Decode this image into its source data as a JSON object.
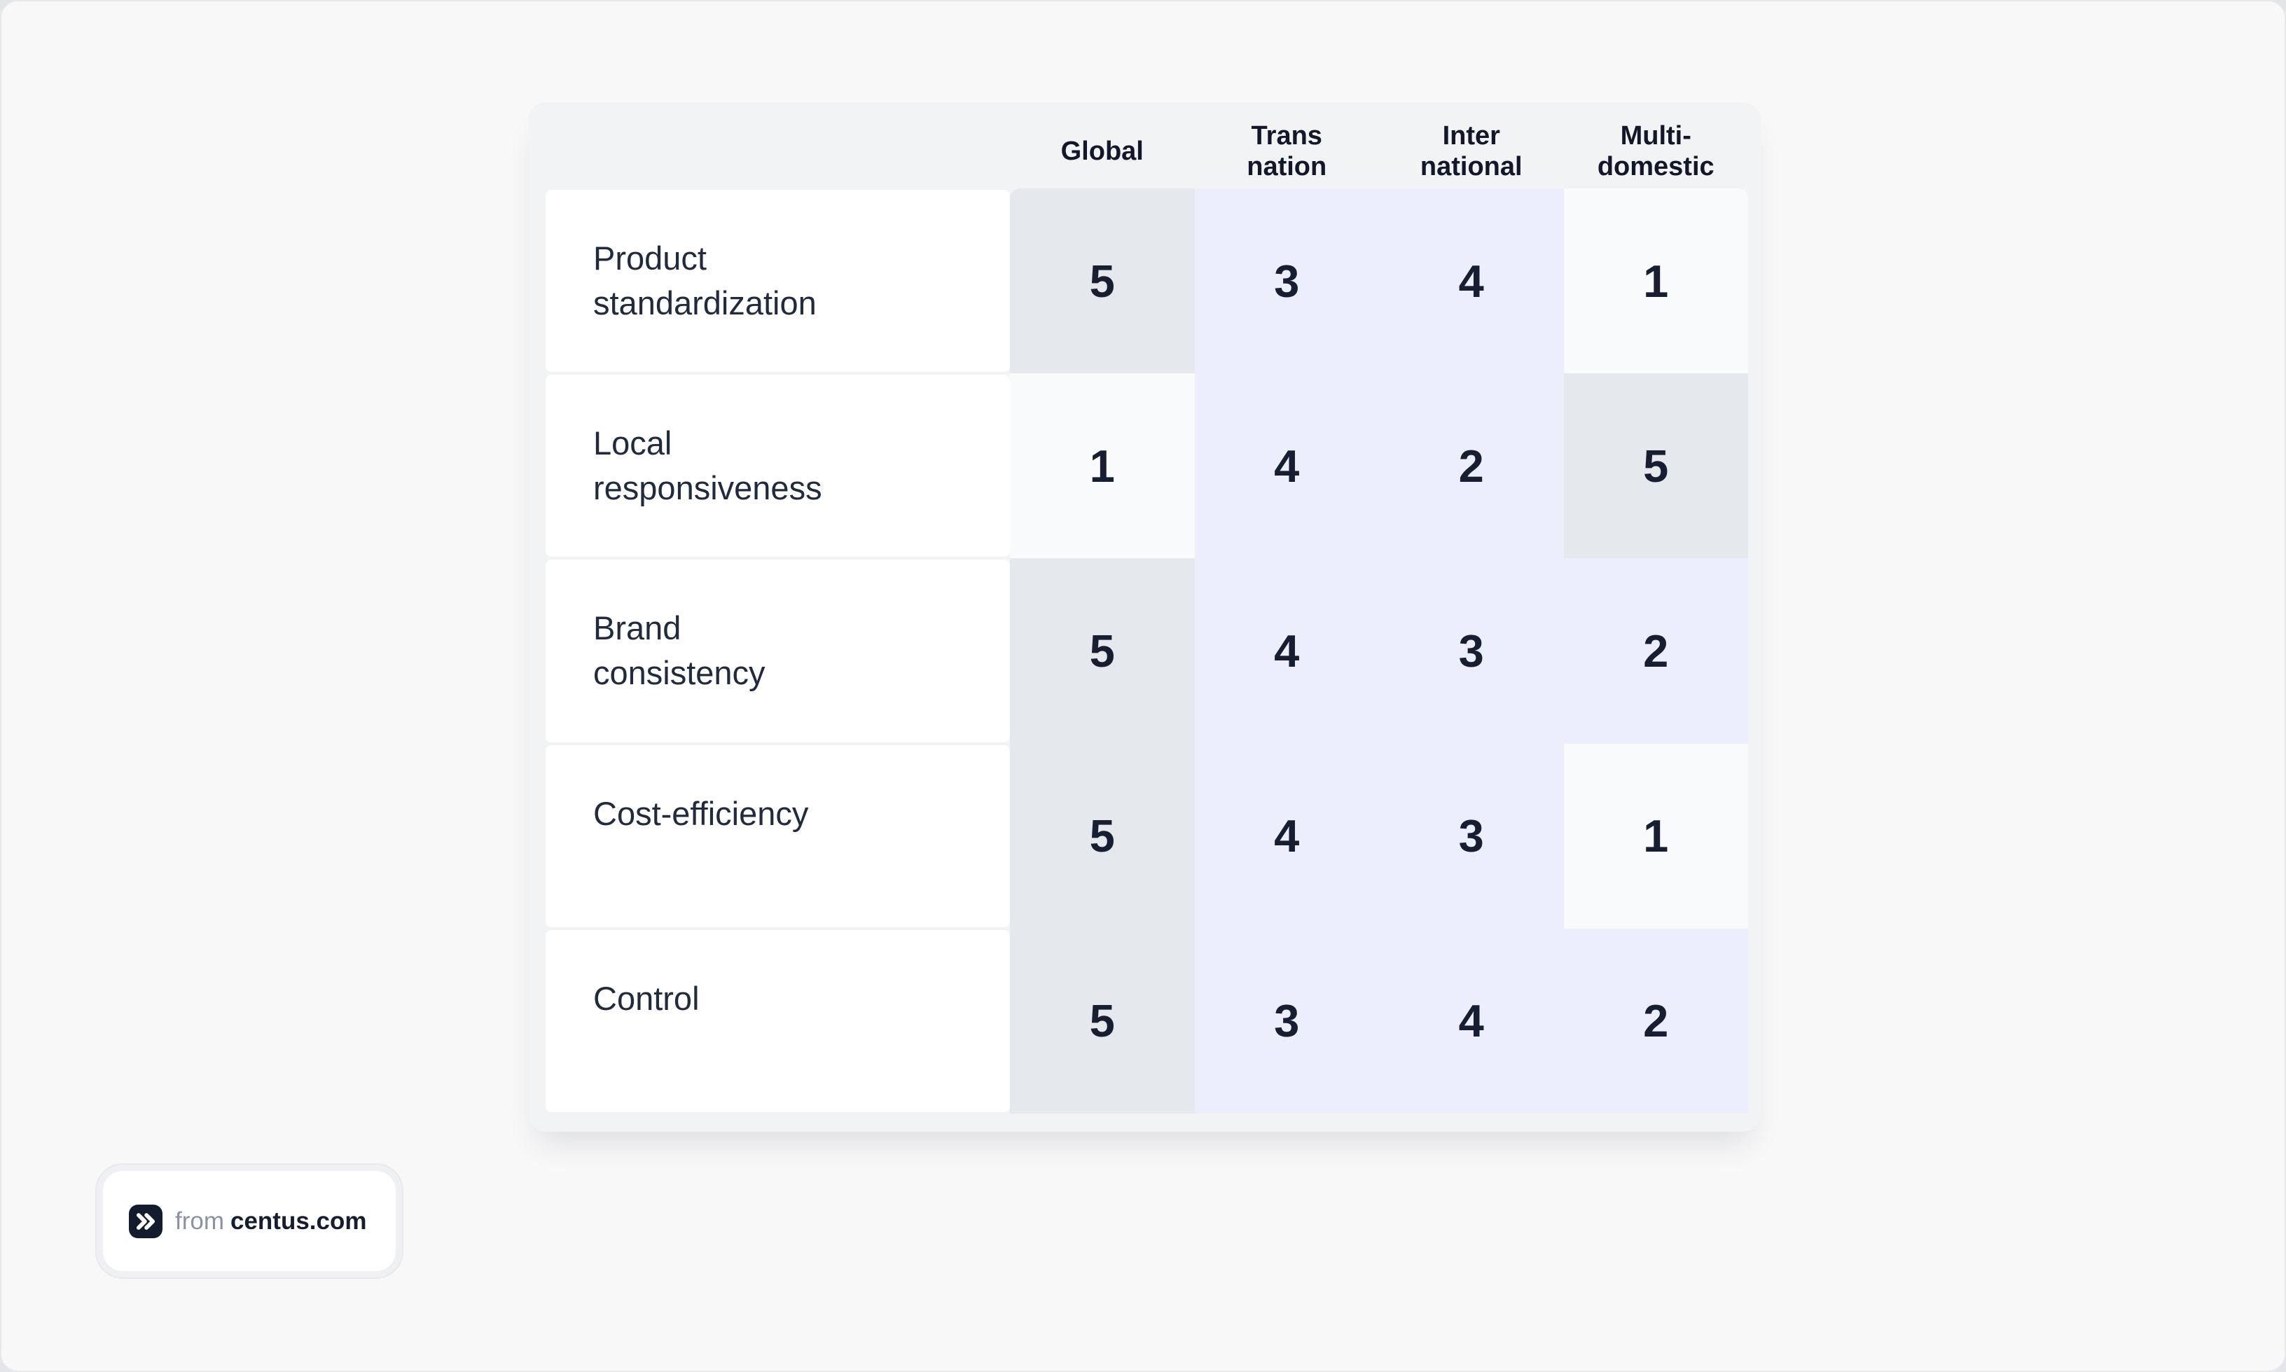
{
  "page": {
    "background": "#f8f8f9"
  },
  "table": {
    "header": {
      "columns": [
        {
          "id": "global",
          "lines": [
            "Global"
          ]
        },
        {
          "id": "transnation",
          "lines": [
            "Trans",
            "nation"
          ]
        },
        {
          "id": "international",
          "lines": [
            "Inter",
            "national"
          ]
        },
        {
          "id": "multidomestic",
          "lines": [
            "Multi-",
            "domestic"
          ]
        }
      ]
    },
    "rows": [
      {
        "label_lines": [
          "Product",
          "standardization"
        ],
        "values": [
          "5",
          "3",
          "4",
          "1"
        ]
      },
      {
        "label_lines": [
          "Local",
          "responsiveness"
        ],
        "values": [
          "1",
          "4",
          "2",
          "5"
        ]
      },
      {
        "label_lines": [
          "Brand",
          "consistency"
        ],
        "values": [
          "5",
          "4",
          "3",
          "2"
        ]
      },
      {
        "label_lines": [
          "Cost-efficiency"
        ],
        "values": [
          "5",
          "4",
          "3",
          "1"
        ]
      },
      {
        "label_lines": [
          "Control"
        ],
        "values": [
          "5",
          "3",
          "4",
          "2"
        ]
      }
    ],
    "cell_colors": {
      "highlight_max": "#e5e8ec",
      "highlight_min": "#f9fafb",
      "default": "#eceefb"
    },
    "value_color_rule": {
      "max_value": "5",
      "min_value": "1"
    }
  },
  "attribution": {
    "icon": "double-chevron-icon",
    "prefix": "from",
    "brand": "centus.com"
  },
  "chart_data": {
    "type": "table",
    "title": "",
    "columns": [
      "Global",
      "Transnation",
      "International",
      "Multi-domestic"
    ],
    "row_labels": [
      "Product standardization",
      "Local responsiveness",
      "Brand consistency",
      "Cost-efficiency",
      "Control"
    ],
    "series": [
      {
        "name": "Product standardization",
        "values": [
          5,
          3,
          4,
          1
        ]
      },
      {
        "name": "Local responsiveness",
        "values": [
          1,
          4,
          2,
          5
        ]
      },
      {
        "name": "Brand consistency",
        "values": [
          5,
          4,
          3,
          2
        ]
      },
      {
        "name": "Cost-efficiency",
        "values": [
          5,
          4,
          3,
          1
        ]
      },
      {
        "name": "Control",
        "values": [
          5,
          3,
          4,
          2
        ]
      }
    ],
    "value_range": [
      1,
      5
    ],
    "legend_position": "none",
    "grid": false
  }
}
